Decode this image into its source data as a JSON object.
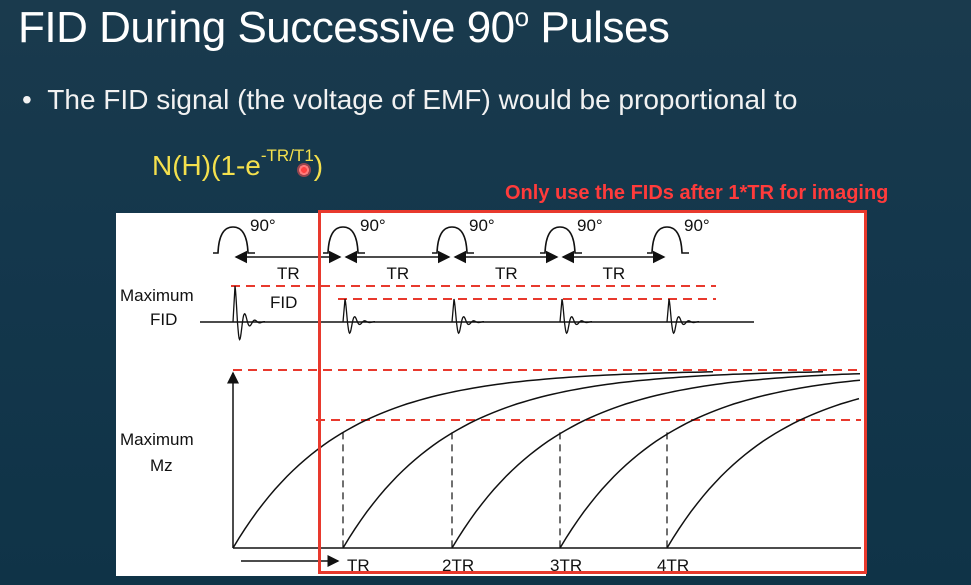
{
  "slide": {
    "title_main": "FID During Successive 90",
    "title_degree": "o",
    "title_rest": " Pulses",
    "bullet_symbol": "•",
    "bullet_text": "The FID signal (the voltage of EMF) would be proportional to",
    "formula_base": "N(H)(1-e",
    "formula_exponent": "-TR/T1",
    "formula_close": ")",
    "annotation": "Only use the FIDs after 1*TR for imaging"
  },
  "diagram": {
    "pulse_label": "90°",
    "tr_label": "TR",
    "max_fid_label_line1": "Maximum",
    "max_fid_label_line2": "FID",
    "fid_label": "FID",
    "max_mz_label_line1": "Maximum",
    "max_mz_label_line2": "Mz",
    "x_ticks": [
      "TR",
      "2TR",
      "3TR",
      "4TR"
    ]
  },
  "colors": {
    "title": "#ffffff",
    "formula": "#f4e04d",
    "annotation": "#ff3b3b",
    "highlight": "#e8392d"
  }
}
